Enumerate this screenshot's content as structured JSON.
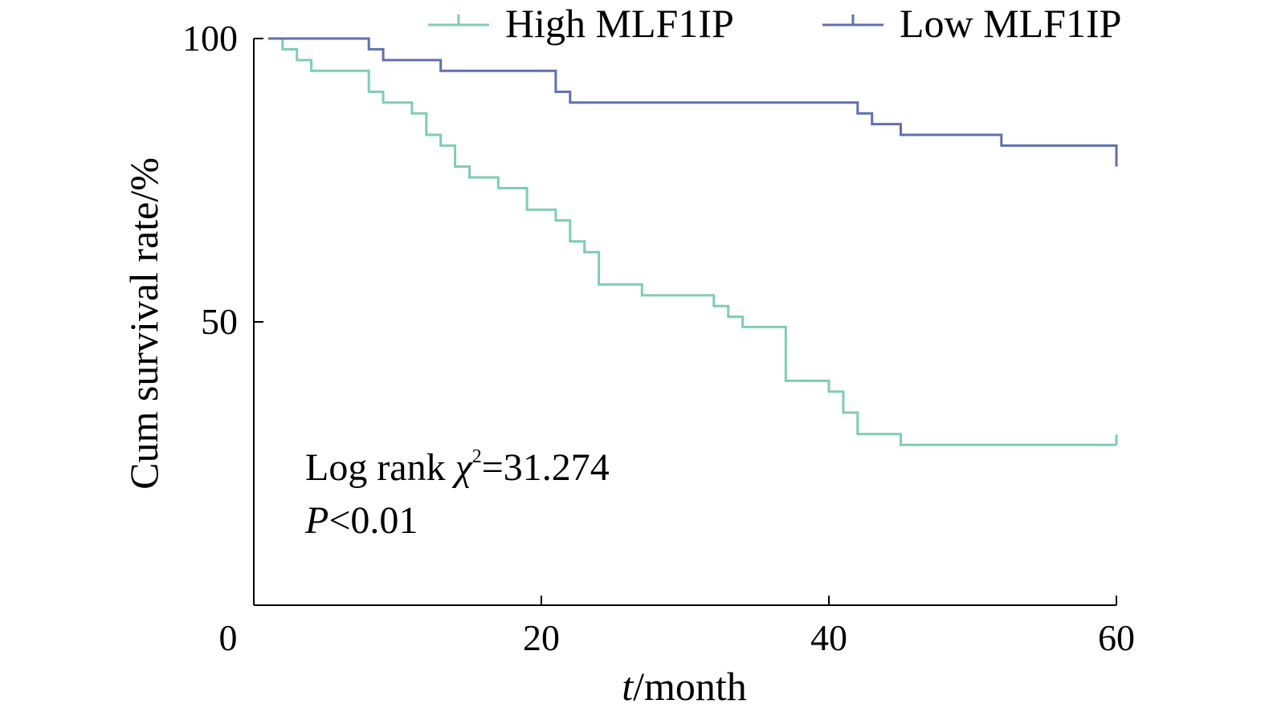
{
  "chart_data": {
    "type": "line",
    "step": true,
    "xlabel": {
      "italic": "t",
      "rest": "/month"
    },
    "ylabel": "Cum survival rate/%",
    "xlim": [
      0,
      60
    ],
    "ylim": [
      0,
      100
    ],
    "xticks": [
      0,
      20,
      40,
      60
    ],
    "xtick_labels": [
      "0",
      "20",
      "40",
      "60"
    ],
    "yticks": [
      50,
      100
    ],
    "ytick_labels": [
      "50",
      "100"
    ],
    "legend_position": "top",
    "annotation": {
      "line1_prefix": "Log rank ",
      "chi_symbol": "χ",
      "superscript": "2",
      "line1_suffix": "=31.274",
      "line2_italic": "P",
      "line2_rest": "<0.01"
    },
    "series": [
      {
        "name": "High MLF1IP",
        "color": "#7ecdb3",
        "censor_x": 60,
        "x": [
          1,
          2,
          3,
          4,
          6,
          8,
          9,
          11,
          12,
          13,
          14,
          15,
          17,
          19,
          21,
          22,
          23,
          24,
          27,
          32,
          33,
          34,
          37,
          40,
          41,
          42,
          45,
          60
        ],
        "y": [
          100,
          98.1,
          96.2,
          94.3,
          94.3,
          90.6,
          88.7,
          86.8,
          83.0,
          81.1,
          77.4,
          75.5,
          73.6,
          69.8,
          67.9,
          64.2,
          62.3,
          56.6,
          54.7,
          52.8,
          50.9,
          49.1,
          39.6,
          37.7,
          34.0,
          30.2,
          28.3,
          28.3
        ]
      },
      {
        "name": "Low MLF1IP",
        "color": "#5d70b0",
        "censor_x": 60,
        "x": [
          1,
          5,
          8,
          9,
          13,
          21,
          22,
          42,
          43,
          45,
          52,
          60
        ],
        "y": [
          100,
          100,
          98.1,
          96.2,
          94.3,
          90.6,
          88.7,
          86.8,
          84.9,
          83.0,
          81.1,
          77.4
        ]
      }
    ]
  }
}
